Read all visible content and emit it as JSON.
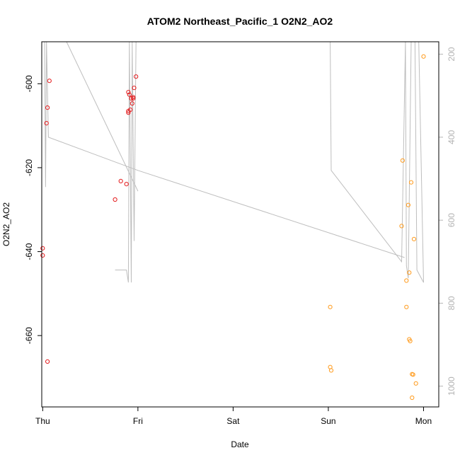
{
  "chart_data": {
    "type": "scatter",
    "title": "ATOM2 Northeast_Pacific_1 O2N2_AO2",
    "xlabel": "Date",
    "ylabel": "O2N2_AO2",
    "x_unit": "days",
    "xlim": [
      -0.01,
      4.16
    ],
    "ylim": [
      -677,
      -590
    ],
    "x_ticks": [
      {
        "value": 0,
        "label": "Thu"
      },
      {
        "value": 1,
        "label": "Fri"
      },
      {
        "value": 2,
        "label": "Sat"
      },
      {
        "value": 3,
        "label": "Sun"
      },
      {
        "value": 4,
        "label": "Mon"
      }
    ],
    "y_ticks": [
      {
        "value": -600,
        "label": "-600"
      },
      {
        "value": -620,
        "label": "-620"
      },
      {
        "value": -640,
        "label": "-640"
      },
      {
        "value": -660,
        "label": "-660"
      }
    ],
    "y2lim": [
      1050,
      170
    ],
    "y2_ticks": [
      {
        "value": 200,
        "label": "200"
      },
      {
        "value": 400,
        "label": "400"
      },
      {
        "value": 600,
        "label": "600"
      },
      {
        "value": 800,
        "label": "800"
      },
      {
        "value": 1000,
        "label": "1000"
      }
    ],
    "grid": false,
    "series": [
      {
        "color": "#e41a1c",
        "points": [
          [
            0.0,
            -639.2
          ],
          [
            0.0,
            -640.9
          ],
          [
            0.04,
            -609.4
          ],
          [
            0.05,
            -605.7
          ],
          [
            0.07,
            -599.3
          ],
          [
            0.05,
            -666.2
          ],
          [
            0.76,
            -627.6
          ],
          [
            0.82,
            -623.2
          ],
          [
            0.88,
            -623.9
          ],
          [
            0.9,
            -602.0
          ],
          [
            0.91,
            -602.6
          ],
          [
            0.93,
            -603.5
          ],
          [
            0.95,
            -603.2
          ],
          [
            0.95,
            -603.5
          ],
          [
            0.9,
            -606.5
          ],
          [
            0.9,
            -606.9
          ],
          [
            0.92,
            -606.2
          ],
          [
            0.94,
            -604.7
          ],
          [
            0.96,
            -601.0
          ],
          [
            0.98,
            -598.3
          ]
        ]
      },
      {
        "color": "#ff9c1f",
        "points": [
          [
            3.02,
            -653.2
          ],
          [
            3.02,
            -667.5
          ],
          [
            3.03,
            -668.3
          ],
          [
            3.77,
            -633.9
          ],
          [
            3.78,
            -618.3
          ],
          [
            3.82,
            -646.9
          ],
          [
            3.82,
            -653.2
          ],
          [
            3.84,
            -628.9
          ],
          [
            3.85,
            -645.0
          ],
          [
            3.85,
            -660.9
          ],
          [
            3.86,
            -661.3
          ],
          [
            3.87,
            -623.5
          ],
          [
            3.88,
            -669.2
          ],
          [
            3.88,
            -674.8
          ],
          [
            3.89,
            -669.3
          ],
          [
            3.9,
            -637.0
          ],
          [
            3.92,
            -671.4
          ],
          [
            4.0,
            -593.5
          ]
        ]
      }
    ],
    "line_series": {
      "color": "#bebebe",
      "axis": "right",
      "points": [
        [
          0.02,
          160
        ],
        [
          0.03,
          520
        ],
        [
          0.04,
          160
        ],
        [
          0.05,
          400
        ],
        [
          0.25,
          160
        ],
        [
          1.0,
          530
        ],
        [
          0.78,
          700
        ],
        [
          0.86,
          700
        ],
        [
          0.9,
          750
        ],
        [
          0.91,
          160
        ],
        [
          0.92,
          750
        ],
        [
          0.94,
          160
        ],
        [
          0.96,
          650
        ],
        [
          0.98,
          160
        ]
      ],
      "segments": [
        [
          [
            0.02,
            160
          ],
          [
            0.03,
            520
          ],
          [
            0.04,
            160
          ],
          [
            0.06,
            400
          ],
          [
            1.0,
            480
          ],
          [
            3.8,
            690
          ]
        ],
        [
          [
            0.25,
            160
          ],
          [
            1.0,
            530
          ]
        ],
        [
          [
            0.76,
            720
          ],
          [
            0.88,
            720
          ],
          [
            0.9,
            750
          ],
          [
            0.91,
            160
          ],
          [
            0.93,
            750
          ],
          [
            0.94,
            160
          ],
          [
            0.96,
            650
          ],
          [
            0.98,
            160
          ]
        ],
        [
          [
            3.02,
            160
          ],
          [
            3.03,
            480
          ],
          [
            3.77,
            700
          ],
          [
            3.81,
            160
          ],
          [
            3.82,
            710
          ],
          [
            3.84,
            740
          ],
          [
            3.87,
            160
          ],
          [
            3.91,
            160
          ],
          [
            3.93,
            720
          ],
          [
            4.0,
            750
          ],
          [
            3.95,
            160
          ]
        ]
      ]
    }
  }
}
